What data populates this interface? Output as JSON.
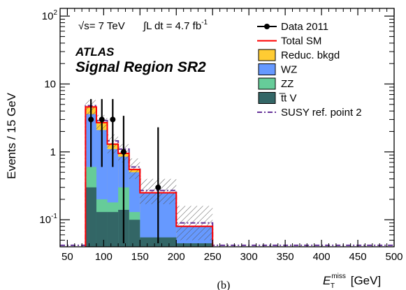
{
  "annotations": {
    "energy": "√s= 7 TeV",
    "lumi_prefix": "∫L dt = 4.7 fb",
    "lumi_exp": "-1",
    "experiment": "ATLAS",
    "region": "Signal Region SR2",
    "panel": "(b)"
  },
  "colors": {
    "total_sm": "#ff0000",
    "reducible": "#ffcc33",
    "wz": "#6699ff",
    "zz": "#66cc99",
    "ttv": "#336666",
    "susy": "#663399",
    "data": "#000000"
  },
  "chart_data": {
    "type": "bar",
    "ylabel": "Events / 15 GeV",
    "xlabel": {
      "main": "E",
      "sub": "T",
      "sup": "miss",
      "unit": " [GeV]"
    },
    "xlim": [
      40,
      500
    ],
    "ylim": [
      0.04,
      130
    ],
    "yscale": "log",
    "x_ticks": [
      50,
      100,
      150,
      200,
      250,
      300,
      350,
      400,
      450,
      500
    ],
    "x_tick_labels": [
      "50",
      "100",
      "150",
      "200",
      "250",
      "300",
      "350",
      "400",
      "450",
      "500"
    ],
    "y_ticks": [
      0.1,
      1,
      10,
      100
    ],
    "y_tick_labels": [
      {
        "base": "10",
        "exp": "-1"
      },
      {
        "base": "1",
        "exp": ""
      },
      {
        "base": "10",
        "exp": ""
      },
      {
        "base": "10",
        "exp": "2"
      }
    ],
    "bins": [
      {
        "lo": 75,
        "hi": 90
      },
      {
        "lo": 90,
        "hi": 105
      },
      {
        "lo": 105,
        "hi": 120
      },
      {
        "lo": 120,
        "hi": 135
      },
      {
        "lo": 135,
        "hi": 150
      },
      {
        "lo": 150,
        "hi": 200
      },
      {
        "lo": 200,
        "hi": 250
      }
    ],
    "stacked_series": [
      {
        "name": "t̅t V",
        "key": "ttv",
        "values": [
          0.3,
          0.13,
          0.13,
          0.14,
          0.1,
          0.055,
          0.045
        ]
      },
      {
        "name": "ZZ",
        "key": "zz",
        "values": [
          0.6,
          0.2,
          0.18,
          0.3,
          0.13,
          0.055,
          0.045
        ]
      },
      {
        "name": "WZ",
        "key": "wz",
        "values": [
          3.6,
          2.1,
          1.1,
          0.85,
          0.5,
          0.25,
          0.08
        ]
      },
      {
        "name": "Reduc. bkgd",
        "key": "reducible",
        "values": [
          4.5,
          2.7,
          1.3,
          0.95,
          0.55,
          0.25,
          0.08
        ]
      }
    ],
    "total_sm": [
      4.6,
      2.7,
      1.3,
      0.95,
      0.55,
      0.25,
      0.08
    ],
    "uncertainty_band": [
      {
        "lo": 3.5,
        "hi": 5.8
      },
      {
        "lo": 2.0,
        "hi": 3.5
      },
      {
        "lo": 0.95,
        "hi": 1.8
      },
      {
        "lo": 0.7,
        "hi": 1.3
      },
      {
        "lo": 0.4,
        "hi": 0.8
      },
      {
        "lo": 0.17,
        "hi": 0.4
      },
      {
        "lo": 0.05,
        "hi": 0.16
      }
    ],
    "susy": [
      4.8,
      2.9,
      1.45,
      1.1,
      0.6,
      0.27,
      0.09
    ],
    "data": [
      {
        "x": 82.5,
        "y": 3.0,
        "ylo": 0.6,
        "yhi": 6.0
      },
      {
        "x": 97.5,
        "y": 3.0,
        "ylo": 0.6,
        "yhi": 6.0
      },
      {
        "x": 112.5,
        "y": 3.0,
        "ylo": 0.6,
        "yhi": 6.0
      },
      {
        "x": 127.5,
        "y": 1.0,
        "ylo": 0.045,
        "yhi": 3.4
      },
      {
        "x": 175,
        "y": 0.3,
        "ylo": 0.045,
        "yhi": 2.3
      }
    ],
    "legend_position": "top-right",
    "legend": [
      {
        "label": "Data 2011",
        "kind": "data"
      },
      {
        "label": "Total SM",
        "kind": "total"
      },
      {
        "label": "Reduc. bkgd",
        "kind": "box",
        "key": "reducible"
      },
      {
        "label": "WZ",
        "kind": "box",
        "key": "wz"
      },
      {
        "label": "ZZ",
        "kind": "box",
        "key": "zz"
      },
      {
        "label": "t̅t V",
        "kind": "box",
        "key": "ttv"
      },
      {
        "label": "SUSY ref. point 2",
        "kind": "susy"
      }
    ]
  }
}
